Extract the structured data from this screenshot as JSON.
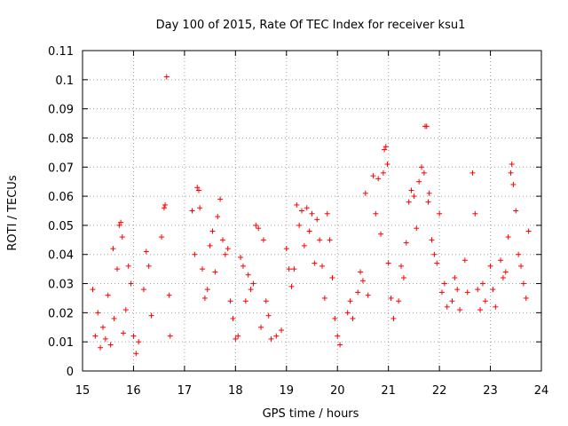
{
  "chart_data": {
    "type": "scatter",
    "title": "Day 100 of 2015, Rate Of TEC Index for receiver ksu1",
    "xlabel": "GPS time / hours",
    "ylabel": "ROTI / TECUs",
    "xlim": [
      15,
      24
    ],
    "ylim": [
      0,
      0.11
    ],
    "xticks": [
      "15",
      "16",
      "17",
      "18",
      "19",
      "20",
      "21",
      "22",
      "23",
      "24"
    ],
    "yticks": [
      "0",
      "0.01",
      "0.02",
      "0.03",
      "0.04",
      "0.05",
      "0.06",
      "0.07",
      "0.08",
      "0.09",
      "0.1",
      "0.11"
    ],
    "grid": true,
    "marker": "+",
    "color": "#ff0000",
    "series": [
      {
        "points": [
          [
            15.2,
            0.028
          ],
          [
            15.25,
            0.012
          ],
          [
            15.3,
            0.02
          ],
          [
            15.35,
            0.008
          ],
          [
            15.4,
            0.015
          ],
          [
            15.45,
            0.011
          ],
          [
            15.5,
            0.026
          ],
          [
            15.55,
            0.009
          ],
          [
            15.6,
            0.042
          ],
          [
            15.62,
            0.018
          ],
          [
            15.68,
            0.035
          ],
          [
            15.72,
            0.05
          ],
          [
            15.75,
            0.051
          ],
          [
            15.78,
            0.046
          ],
          [
            15.8,
            0.013
          ],
          [
            15.85,
            0.021
          ],
          [
            15.9,
            0.036
          ],
          [
            15.95,
            0.03
          ],
          [
            16.0,
            0.012
          ],
          [
            16.05,
            0.006
          ],
          [
            16.1,
            0.01
          ],
          [
            16.2,
            0.028
          ],
          [
            16.25,
            0.041
          ],
          [
            16.3,
            0.036
          ],
          [
            16.35,
            0.019
          ],
          [
            16.55,
            0.046
          ],
          [
            16.6,
            0.056
          ],
          [
            16.62,
            0.057
          ],
          [
            16.65,
            0.101
          ],
          [
            16.7,
            0.026
          ],
          [
            16.72,
            0.012
          ],
          [
            17.15,
            0.055
          ],
          [
            17.2,
            0.04
          ],
          [
            17.25,
            0.063
          ],
          [
            17.28,
            0.062
          ],
          [
            17.3,
            0.056
          ],
          [
            17.35,
            0.035
          ],
          [
            17.4,
            0.025
          ],
          [
            17.45,
            0.028
          ],
          [
            17.5,
            0.043
          ],
          [
            17.55,
            0.048
          ],
          [
            17.6,
            0.034
          ],
          [
            17.65,
            0.053
          ],
          [
            17.7,
            0.059
          ],
          [
            17.75,
            0.045
          ],
          [
            17.8,
            0.04
          ],
          [
            17.85,
            0.042
          ],
          [
            17.9,
            0.024
          ],
          [
            17.95,
            0.018
          ],
          [
            18.0,
            0.011
          ],
          [
            18.05,
            0.012
          ],
          [
            18.1,
            0.039
          ],
          [
            18.15,
            0.036
          ],
          [
            18.2,
            0.024
          ],
          [
            18.25,
            0.033
          ],
          [
            18.3,
            0.028
          ],
          [
            18.35,
            0.03
          ],
          [
            18.4,
            0.05
          ],
          [
            18.45,
            0.049
          ],
          [
            18.5,
            0.015
          ],
          [
            18.55,
            0.045
          ],
          [
            18.6,
            0.024
          ],
          [
            18.65,
            0.019
          ],
          [
            18.7,
            0.011
          ],
          [
            18.8,
            0.012
          ],
          [
            18.9,
            0.014
          ],
          [
            19.0,
            0.042
          ],
          [
            19.05,
            0.035
          ],
          [
            19.1,
            0.029
          ],
          [
            19.15,
            0.035
          ],
          [
            19.2,
            0.057
          ],
          [
            19.25,
            0.05
          ],
          [
            19.3,
            0.055
          ],
          [
            19.35,
            0.043
          ],
          [
            19.4,
            0.056
          ],
          [
            19.45,
            0.048
          ],
          [
            19.5,
            0.054
          ],
          [
            19.55,
            0.037
          ],
          [
            19.6,
            0.052
          ],
          [
            19.65,
            0.045
          ],
          [
            19.7,
            0.036
          ],
          [
            19.75,
            0.025
          ],
          [
            19.8,
            0.054
          ],
          [
            19.85,
            0.045
          ],
          [
            19.9,
            0.032
          ],
          [
            19.95,
            0.018
          ],
          [
            20.0,
            0.012
          ],
          [
            20.05,
            0.009
          ],
          [
            20.2,
            0.02
          ],
          [
            20.25,
            0.024
          ],
          [
            20.3,
            0.018
          ],
          [
            20.4,
            0.027
          ],
          [
            20.45,
            0.034
          ],
          [
            20.5,
            0.031
          ],
          [
            20.55,
            0.061
          ],
          [
            20.6,
            0.026
          ],
          [
            20.7,
            0.067
          ],
          [
            20.75,
            0.054
          ],
          [
            20.8,
            0.066
          ],
          [
            20.85,
            0.047
          ],
          [
            20.9,
            0.068
          ],
          [
            20.92,
            0.076
          ],
          [
            20.95,
            0.077
          ],
          [
            20.98,
            0.071
          ],
          [
            21.0,
            0.037
          ],
          [
            21.05,
            0.025
          ],
          [
            21.1,
            0.018
          ],
          [
            21.2,
            0.024
          ],
          [
            21.25,
            0.036
          ],
          [
            21.3,
            0.032
          ],
          [
            21.35,
            0.044
          ],
          [
            21.4,
            0.058
          ],
          [
            21.45,
            0.062
          ],
          [
            21.5,
            0.06
          ],
          [
            21.55,
            0.049
          ],
          [
            21.6,
            0.065
          ],
          [
            21.65,
            0.07
          ],
          [
            21.7,
            0.068
          ],
          [
            21.72,
            0.084
          ],
          [
            21.75,
            0.084
          ],
          [
            21.78,
            0.058
          ],
          [
            21.8,
            0.061
          ],
          [
            21.85,
            0.045
          ],
          [
            21.9,
            0.04
          ],
          [
            21.95,
            0.037
          ],
          [
            22.0,
            0.054
          ],
          [
            22.05,
            0.027
          ],
          [
            22.1,
            0.03
          ],
          [
            22.15,
            0.022
          ],
          [
            22.25,
            0.024
          ],
          [
            22.3,
            0.032
          ],
          [
            22.35,
            0.028
          ],
          [
            22.4,
            0.021
          ],
          [
            22.5,
            0.038
          ],
          [
            22.55,
            0.027
          ],
          [
            22.65,
            0.068
          ],
          [
            22.7,
            0.054
          ],
          [
            22.75,
            0.028
          ],
          [
            22.8,
            0.021
          ],
          [
            22.85,
            0.03
          ],
          [
            22.9,
            0.024
          ],
          [
            23.0,
            0.036
          ],
          [
            23.05,
            0.028
          ],
          [
            23.1,
            0.022
          ],
          [
            23.2,
            0.038
          ],
          [
            23.25,
            0.032
          ],
          [
            23.3,
            0.034
          ],
          [
            23.35,
            0.046
          ],
          [
            23.4,
            0.068
          ],
          [
            23.42,
            0.071
          ],
          [
            23.45,
            0.064
          ],
          [
            23.5,
            0.055
          ],
          [
            23.55,
            0.04
          ],
          [
            23.6,
            0.036
          ],
          [
            23.65,
            0.03
          ],
          [
            23.7,
            0.025
          ],
          [
            23.75,
            0.048
          ]
        ]
      }
    ]
  }
}
